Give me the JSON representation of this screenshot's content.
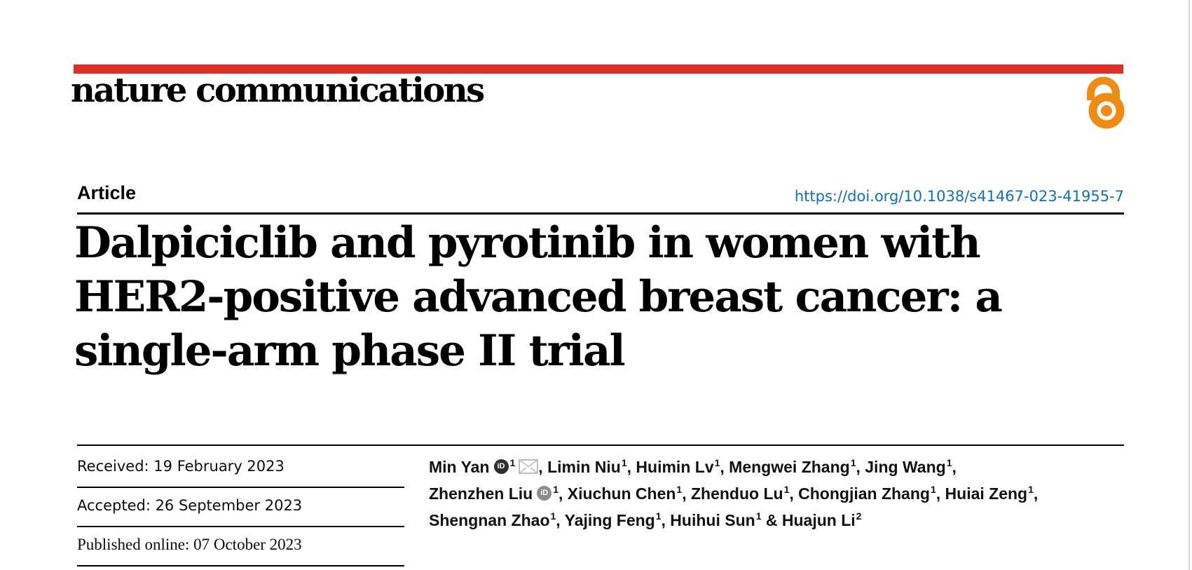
{
  "page": {
    "background": "#ffffff",
    "right_border_color": "#d6d6d6"
  },
  "brand": {
    "journal_name": "nature communications",
    "bar_color": "#e03026",
    "open_access_color": "#f08c14"
  },
  "header": {
    "article_type": "Article",
    "doi_text": "https://doi.org/10.1038/s41467-023-41955-7",
    "doi_color": "#1072b2"
  },
  "title": {
    "line1": "Dalpiciclib and pyrotinib in women with",
    "line2": "HER2-positive advanced breast cancer: a",
    "line3": "single-arm phase II trial"
  },
  "dates": {
    "received": "Received: 19 February 2023",
    "accepted": "Accepted: 26 September 2023",
    "published": "Published online: 07 October 2023"
  },
  "authors": {
    "orcid_glyph": "iD",
    "lines": [
      [
        {
          "t": "text",
          "v": "Min Yan"
        },
        {
          "t": "orcid",
          "shade": "dark"
        },
        {
          "t": "sup",
          "v": "1"
        },
        {
          "t": "mail"
        },
        {
          "t": "text",
          "v": ", Limin Niu"
        },
        {
          "t": "sup",
          "v": "1"
        },
        {
          "t": "text",
          "v": ", Huimin Lv"
        },
        {
          "t": "sup",
          "v": "1"
        },
        {
          "t": "text",
          "v": ", Mengwei Zhang"
        },
        {
          "t": "sup",
          "v": "1"
        },
        {
          "t": "text",
          "v": ", Jing Wang"
        },
        {
          "t": "sup",
          "v": "1"
        },
        {
          "t": "text",
          "v": ","
        }
      ],
      [
        {
          "t": "text",
          "v": "Zhenzhen Liu"
        },
        {
          "t": "orcid",
          "shade": "gray"
        },
        {
          "t": "sup",
          "v": "1"
        },
        {
          "t": "text",
          "v": ", Xiuchun Chen"
        },
        {
          "t": "sup",
          "v": "1"
        },
        {
          "t": "text",
          "v": ", Zhenduo Lu"
        },
        {
          "t": "sup",
          "v": "1"
        },
        {
          "t": "text",
          "v": ", Chongjian Zhang"
        },
        {
          "t": "sup",
          "v": "1"
        },
        {
          "t": "text",
          "v": ", Huiai Zeng"
        },
        {
          "t": "sup",
          "v": "1"
        },
        {
          "t": "text",
          "v": ","
        }
      ],
      [
        {
          "t": "text",
          "v": "Shengnan Zhao"
        },
        {
          "t": "sup",
          "v": "1"
        },
        {
          "t": "text",
          "v": ", Yajing Feng"
        },
        {
          "t": "sup",
          "v": "1"
        },
        {
          "t": "text",
          "v": ", Huihui Sun"
        },
        {
          "t": "sup",
          "v": "1"
        },
        {
          "t": "text",
          "v": " & Huajun Li"
        },
        {
          "t": "sup",
          "v": "2"
        }
      ]
    ]
  }
}
